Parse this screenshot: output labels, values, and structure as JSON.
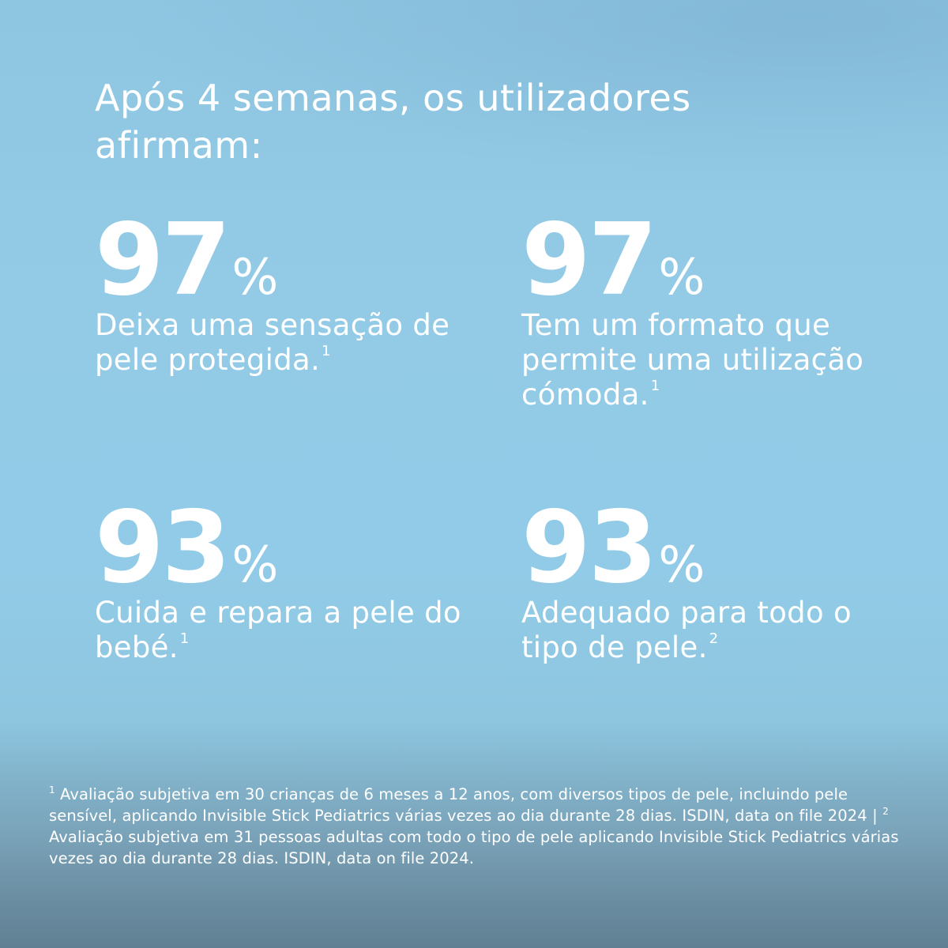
{
  "headline": "Após 4 semanas, os utilizadores afirmam:",
  "stats": [
    {
      "value": "97",
      "unit": "%",
      "text": "Deixa uma sensação de pele protegida.",
      "ref": "1"
    },
    {
      "value": "97",
      "unit": "%",
      "text": "Tem um formato que permite uma utilização cómoda.",
      "ref": "1"
    },
    {
      "value": "93",
      "unit": "%",
      "text": "Cuida e repara a pele do bebé.",
      "ref": "1"
    },
    {
      "value": "93",
      "unit": "%",
      "text": "Adequado para todo o tipo de pele.",
      "ref": "2"
    }
  ],
  "footnotes": {
    "ref1": "1",
    "text1": " Avaliação subjetiva em 30 crianças de 6 meses a 12 anos, com diversos tipos de pele, incluindo pele sensível, aplicando Invisible Stick Pediatrics várias vezes ao dia durante 28 dias. ISDIN, data on file 2024 | ",
    "ref2": "2",
    "text2": " Avaliação subjetiva em 31 pessoas adultas com todo o tipo de pele aplicando Invisible Stick Pediatrics várias vezes ao dia durante 28 dias. ISDIN, data on file 2024."
  },
  "colors": {
    "background_top": "#8ec6e2",
    "background_bottom": "#607f93",
    "text": "#ffffff"
  }
}
